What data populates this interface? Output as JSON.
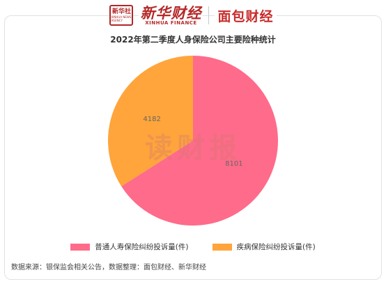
{
  "header": {
    "logo_box_cn": "新华社",
    "logo_box_en": "XINHUA NEWS AGENCY",
    "xinhua_cn": "新华财经",
    "xinhua_en": "XINHUA FINANCE",
    "mianbao": "面包财经"
  },
  "watermark": "读财报",
  "chart_data": {
    "type": "pie",
    "title": "2022年第二季度人身保险公司主要险种统计",
    "slices": [
      {
        "label": "普通人寿保险纠纷投诉量(件)",
        "value": 8101,
        "color": "#ff6b8a"
      },
      {
        "label": "疾病保险纠纷投诉量(件)",
        "value": 4182,
        "color": "#ffa53c"
      }
    ],
    "legend_position": "bottom"
  },
  "source": "数据来源：银保监会相关公告，数据整理：面包财经、新华财经"
}
